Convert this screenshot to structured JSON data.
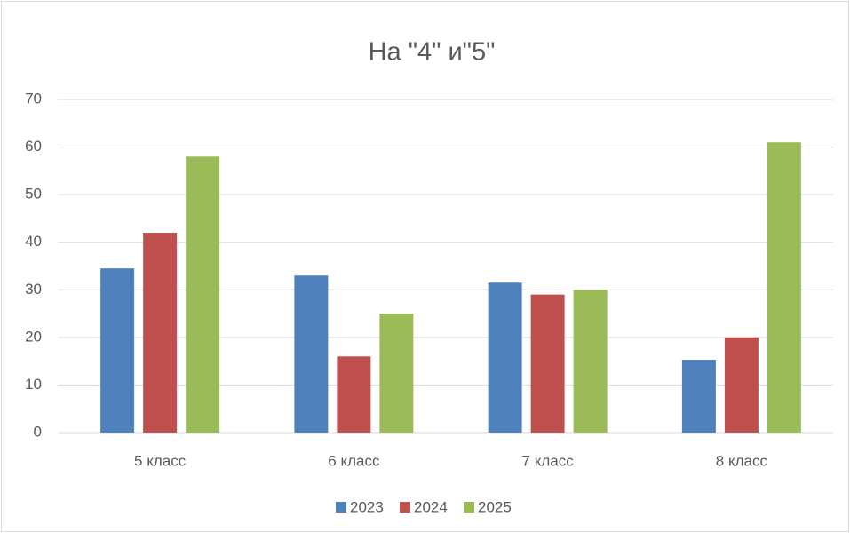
{
  "chart_data": {
    "type": "bar",
    "title": "На \"4\" и\"5\"",
    "categories": [
      "5 класс",
      "6 класс",
      "7 класс",
      "8 класс"
    ],
    "series": [
      {
        "name": "2023",
        "color": "#4f81bd",
        "values": [
          34.5,
          33,
          31.5,
          15.3
        ]
      },
      {
        "name": "2024",
        "color": "#c0504d",
        "values": [
          42,
          16,
          29,
          20
        ]
      },
      {
        "name": "2025",
        "color": "#9bbb59",
        "values": [
          58,
          25,
          30,
          61
        ]
      }
    ],
    "ylim": [
      0,
      70
    ],
    "yticks": [
      0,
      10,
      20,
      30,
      40,
      50,
      60,
      70
    ],
    "grid": true,
    "legend": "bottom"
  }
}
